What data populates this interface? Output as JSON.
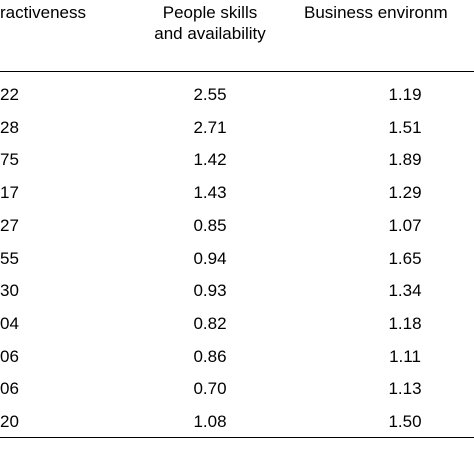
{
  "table": {
    "headers": {
      "col1": "ractiveness",
      "col2_line1": "People skills",
      "col2_line2": "and availability",
      "col3": "Business environm"
    },
    "rows": [
      {
        "c1": "22",
        "c2": "2.55",
        "c3": "1.19"
      },
      {
        "c1": "28",
        "c2": "2.71",
        "c3": "1.51"
      },
      {
        "c1": "75",
        "c2": "1.42",
        "c3": "1.89"
      },
      {
        "c1": "17",
        "c2": "1.43",
        "c3": "1.29"
      },
      {
        "c1": "27",
        "c2": "0.85",
        "c3": "1.07"
      },
      {
        "c1": "55",
        "c2": "0.94",
        "c3": "1.65"
      },
      {
        "c1": "30",
        "c2": "0.93",
        "c3": "1.34"
      },
      {
        "c1": "04",
        "c2": "0.82",
        "c3": "1.18"
      },
      {
        "c1": "06",
        "c2": "0.86",
        "c3": "1.11"
      },
      {
        "c1": "06",
        "c2": "0.70",
        "c3": "1.13"
      },
      {
        "c1": "20",
        "c2": "1.08",
        "c3": "1.50"
      }
    ]
  }
}
